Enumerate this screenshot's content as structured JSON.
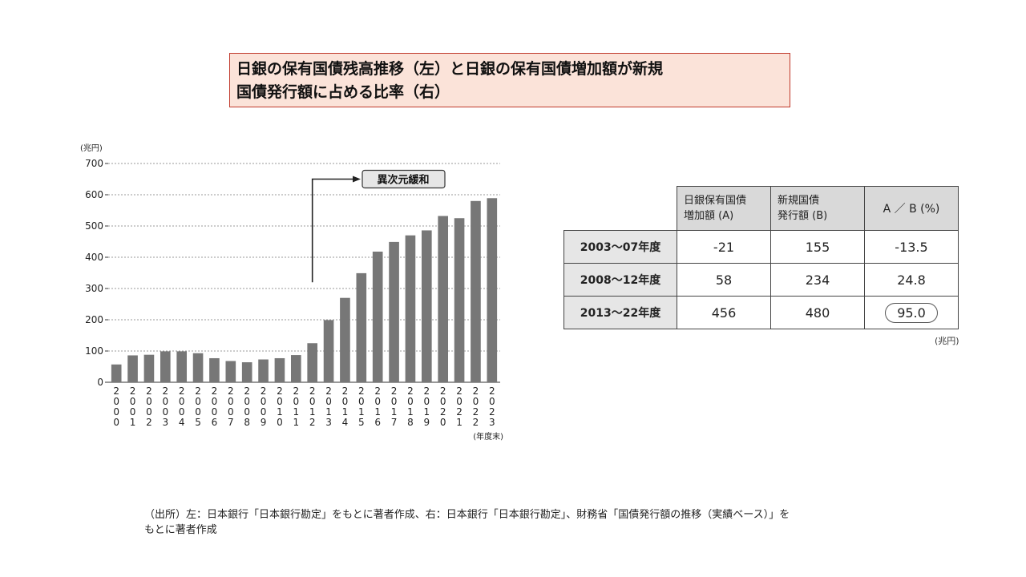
{
  "title": {
    "line1": "日銀の保有国債残高推移（左）と日銀の保有国債増加額が新規",
    "line2": "国債発行額に占める比率（右）"
  },
  "chart_data": {
    "type": "bar",
    "unit_label": "(兆円)",
    "x_unit_label": "(年度末)",
    "categories": [
      "2000",
      "2001",
      "2002",
      "2003",
      "2004",
      "2005",
      "2006",
      "2007",
      "2008",
      "2009",
      "2010",
      "2011",
      "2012",
      "2013",
      "2014",
      "2015",
      "2016",
      "2017",
      "2018",
      "2019",
      "2020",
      "2021",
      "2022",
      "2023"
    ],
    "values": [
      57,
      86,
      88,
      99,
      99,
      93,
      77,
      68,
      64,
      73,
      77,
      87,
      125,
      199,
      270,
      349,
      418,
      449,
      470,
      486,
      532,
      525,
      580,
      589
    ],
    "ylim": [
      0,
      700
    ],
    "yticks": [
      0,
      100,
      200,
      300,
      400,
      500,
      600,
      700
    ],
    "grid": true,
    "bar_color": "#777777",
    "annotation": {
      "label": "異次元緩和",
      "start_category": "2013"
    }
  },
  "table": {
    "headers": [
      {
        "line1": "日銀保有国債",
        "line2": "増加額 (A)"
      },
      {
        "line1": "新規国債",
        "line2": "発行額 (B)"
      },
      {
        "line1": "A ／ B (%)",
        "line2": ""
      }
    ],
    "rows": [
      {
        "label": "2003～07年度",
        "a": "-21",
        "b": "155",
        "ratio": "-13.5"
      },
      {
        "label": "2008～12年度",
        "a": "58",
        "b": "234",
        "ratio": "24.8"
      },
      {
        "label": "2013～22年度",
        "a": "456",
        "b": "480",
        "ratio": "95.0"
      }
    ],
    "unit": "(兆円)"
  },
  "source": {
    "line1": "（出所）左：日本銀行「日本銀行勘定」をもとに著者作成、右：日本銀行「日本銀行勘定」、財務省「国債発行額の推移（実績ベース）」を",
    "line2": "もとに著者作成"
  }
}
